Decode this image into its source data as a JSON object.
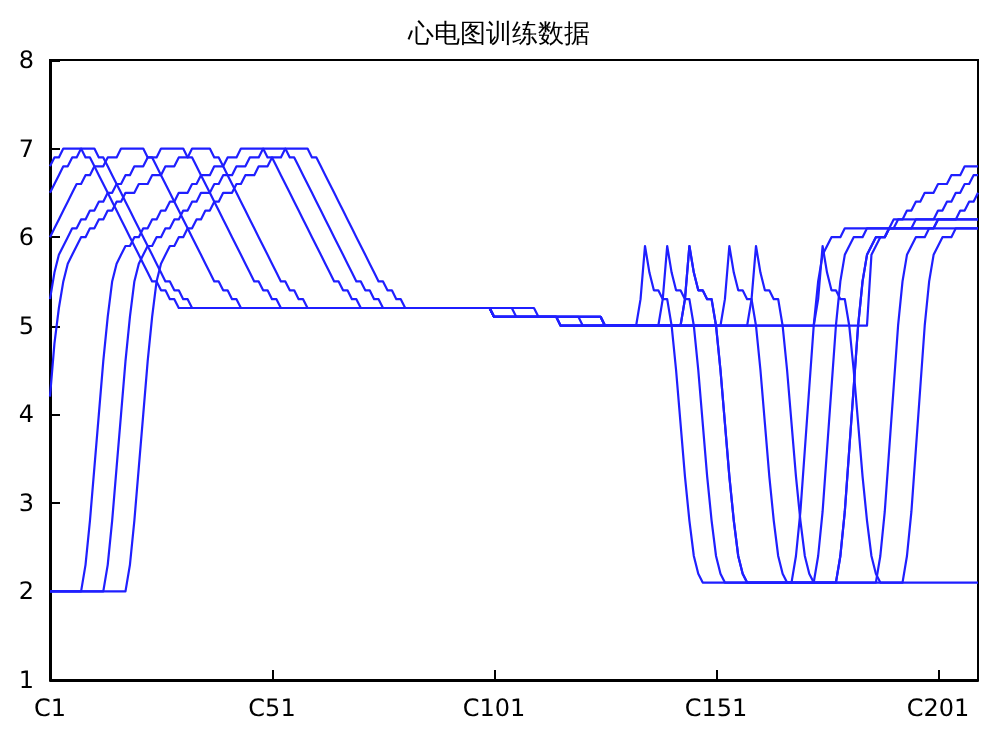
{
  "chart_data": {
    "type": "line",
    "title": "心电图训练数据",
    "ylim": [
      1,
      8
    ],
    "categories": [
      "C1",
      null,
      null,
      null,
      null,
      null,
      null,
      null,
      null,
      null,
      null,
      null,
      null,
      null,
      null,
      null,
      null,
      null,
      null,
      null,
      null,
      null,
      null,
      null,
      null,
      null,
      null,
      null,
      null,
      null,
      null,
      null,
      null,
      null,
      null,
      null,
      null,
      null,
      null,
      null,
      null,
      null,
      null,
      null,
      null,
      null,
      null,
      null,
      null,
      null,
      "C51",
      null,
      null,
      null,
      null,
      null,
      null,
      null,
      null,
      null,
      null,
      null,
      null,
      null,
      null,
      null,
      null,
      null,
      null,
      null,
      null,
      null,
      null,
      null,
      null,
      null,
      null,
      null,
      null,
      null,
      null,
      null,
      null,
      null,
      null,
      null,
      null,
      null,
      null,
      null,
      null,
      null,
      null,
      null,
      null,
      null,
      null,
      null,
      null,
      null,
      "C101",
      null,
      null,
      null,
      null,
      null,
      null,
      null,
      null,
      null,
      null,
      null,
      null,
      null,
      null,
      null,
      null,
      null,
      null,
      null,
      null,
      null,
      null,
      null,
      null,
      null,
      null,
      null,
      null,
      null,
      null,
      null,
      null,
      null,
      null,
      null,
      null,
      null,
      null,
      null,
      null,
      null,
      null,
      null,
      null,
      null,
      null,
      null,
      null,
      null,
      "C151",
      null,
      null,
      null,
      null,
      null,
      null,
      null,
      null,
      null,
      null,
      null,
      null,
      null,
      null,
      null,
      null,
      null,
      null,
      null,
      null,
      null,
      null,
      null,
      null,
      null,
      null,
      null,
      null,
      null,
      null,
      null,
      null,
      null,
      null,
      null,
      null,
      null,
      null,
      null,
      null,
      null,
      null,
      null,
      null,
      null,
      null,
      null,
      null,
      null,
      "C201",
      null,
      null,
      null,
      null,
      null,
      null,
      null,
      null,
      null
    ],
    "yticks": [
      1,
      2,
      3,
      4,
      5,
      6,
      7,
      8
    ],
    "grid": false,
    "marker": "none",
    "line_style": "solid",
    "series": [
      {
        "color": "#1f1fff",
        "values": [
          2.0,
          2.0,
          2.0,
          2.0,
          2.0,
          2.0,
          2.0,
          2.0,
          2.3,
          2.8,
          3.4,
          4.0,
          4.6,
          5.1,
          5.5,
          5.7,
          5.8,
          5.9,
          5.9,
          6.0,
          6.0,
          6.1,
          6.1,
          6.2,
          6.2,
          6.3,
          6.3,
          6.4,
          6.4,
          6.5,
          6.5,
          6.5,
          6.6,
          6.6,
          6.7,
          6.7,
          6.7,
          6.8,
          6.8,
          6.8,
          6.9,
          6.9,
          6.9,
          7.0,
          7.0,
          7.0,
          7.0,
          7.0,
          7.0,
          6.9,
          6.9,
          6.8,
          6.7,
          6.6,
          6.5,
          6.4,
          6.3,
          6.2,
          6.1,
          6.0,
          5.9,
          5.8,
          5.7,
          5.6,
          5.5,
          5.5,
          5.4,
          5.4,
          5.3,
          5.3,
          5.2,
          5.2,
          5.2,
          5.2,
          5.2,
          5.2,
          5.2,
          5.2,
          5.2,
          5.2,
          5.2,
          5.2,
          5.2,
          5.2,
          5.2,
          5.2,
          5.2,
          5.2,
          5.2,
          5.2,
          5.2,
          5.2,
          5.2,
          5.2,
          5.2,
          5.2,
          5.2,
          5.2,
          5.2,
          5.2,
          5.1,
          5.1,
          5.1,
          5.1,
          5.1,
          5.1,
          5.1,
          5.1,
          5.1,
          5.1,
          5.1,
          5.1,
          5.1,
          5.1,
          5.1,
          5.0,
          5.0,
          5.0,
          5.0,
          5.0,
          5.0,
          5.0,
          5.0,
          5.0,
          5.0,
          5.0,
          5.0,
          5.0,
          5.0,
          5.0,
          5.0,
          5.0,
          5.0,
          5.3,
          5.9,
          5.6,
          5.4,
          5.4,
          5.3,
          5.3,
          5.0,
          4.5,
          3.9,
          3.3,
          2.8,
          2.4,
          2.2,
          2.1,
          2.1,
          2.1,
          2.1,
          2.1,
          2.1,
          2.1,
          2.1,
          2.1,
          2.1,
          2.1,
          2.1,
          2.1,
          2.1,
          2.1,
          2.1,
          2.1,
          2.1,
          2.1,
          2.1,
          2.1,
          2.4,
          2.9,
          3.6,
          4.3,
          5.0,
          5.5,
          5.8,
          5.9,
          6.0,
          6.0,
          6.0,
          6.1,
          6.1,
          6.1,
          6.1,
          6.1,
          6.1,
          6.1,
          6.1,
          6.1,
          6.1,
          6.1,
          6.2,
          6.2,
          6.2,
          6.2,
          6.2,
          6.2,
          6.2,
          6.2,
          6.2,
          6.2,
          6.3,
          6.3,
          6.4,
          6.4,
          6.5,
          6.5,
          6.6,
          6.6,
          6.7,
          6.7
        ]
      },
      {
        "color": "#1f1fff",
        "values": [
          2.0,
          2.0,
          2.0,
          2.0,
          2.0,
          2.0,
          2.0,
          2.0,
          2.0,
          2.0,
          2.0,
          2.0,
          2.0,
          2.0,
          2.0,
          2.0,
          2.0,
          2.0,
          2.3,
          2.8,
          3.4,
          4.0,
          4.6,
          5.1,
          5.5,
          5.7,
          5.8,
          5.9,
          5.9,
          6.0,
          6.0,
          6.1,
          6.1,
          6.2,
          6.2,
          6.3,
          6.3,
          6.4,
          6.4,
          6.5,
          6.5,
          6.5,
          6.6,
          6.6,
          6.7,
          6.7,
          6.7,
          6.8,
          6.8,
          6.8,
          6.9,
          6.9,
          6.9,
          7.0,
          7.0,
          7.0,
          7.0,
          7.0,
          7.0,
          6.9,
          6.9,
          6.8,
          6.7,
          6.6,
          6.5,
          6.4,
          6.3,
          6.2,
          6.1,
          6.0,
          5.9,
          5.8,
          5.7,
          5.6,
          5.5,
          5.5,
          5.4,
          5.4,
          5.3,
          5.3,
          5.2,
          5.2,
          5.2,
          5.2,
          5.2,
          5.2,
          5.2,
          5.2,
          5.2,
          5.2,
          5.2,
          5.2,
          5.2,
          5.2,
          5.2,
          5.2,
          5.2,
          5.2,
          5.2,
          5.2,
          5.2,
          5.2,
          5.2,
          5.2,
          5.2,
          5.2,
          5.2,
          5.2,
          5.2,
          5.2,
          5.1,
          5.1,
          5.1,
          5.1,
          5.1,
          5.1,
          5.1,
          5.1,
          5.1,
          5.1,
          5.1,
          5.1,
          5.1,
          5.1,
          5.1,
          5.0,
          5.0,
          5.0,
          5.0,
          5.0,
          5.0,
          5.0,
          5.0,
          5.0,
          5.0,
          5.0,
          5.0,
          5.0,
          5.0,
          5.0,
          5.0,
          5.0,
          5.0,
          5.3,
          5.9,
          5.6,
          5.4,
          5.4,
          5.3,
          5.3,
          5.0,
          4.5,
          3.9,
          3.3,
          2.8,
          2.4,
          2.2,
          2.1,
          2.1,
          2.1,
          2.1,
          2.1,
          2.1,
          2.1,
          2.1,
          2.1,
          2.1,
          2.1,
          2.1,
          2.1,
          2.1,
          2.1,
          2.1,
          2.1,
          2.1,
          2.1,
          2.1,
          2.1,
          2.4,
          2.9,
          3.6,
          4.3,
          5.0,
          5.5,
          5.8,
          5.9,
          6.0,
          6.0,
          6.0,
          6.1,
          6.1,
          6.1,
          6.1,
          6.1,
          6.1,
          6.1,
          6.1,
          6.1,
          6.1,
          6.1,
          6.2,
          6.2,
          6.2,
          6.2,
          6.2,
          6.2,
          6.2,
          6.2,
          6.2,
          6.2
        ]
      },
      {
        "color": "#1f1fff",
        "values": [
          2.0,
          2.0,
          2.0,
          2.0,
          2.0,
          2.0,
          2.0,
          2.0,
          2.0,
          2.0,
          2.0,
          2.0,
          2.0,
          2.3,
          2.8,
          3.4,
          4.0,
          4.6,
          5.1,
          5.5,
          5.7,
          5.8,
          5.9,
          5.9,
          6.0,
          6.0,
          6.1,
          6.1,
          6.2,
          6.2,
          6.3,
          6.3,
          6.4,
          6.4,
          6.5,
          6.5,
          6.5,
          6.6,
          6.6,
          6.7,
          6.7,
          6.7,
          6.8,
          6.8,
          6.8,
          6.9,
          6.9,
          6.9,
          7.0,
          7.0,
          7.0,
          7.0,
          7.0,
          7.0,
          6.9,
          6.9,
          6.8,
          6.7,
          6.6,
          6.5,
          6.4,
          6.3,
          6.2,
          6.1,
          6.0,
          5.9,
          5.8,
          5.7,
          5.6,
          5.5,
          5.5,
          5.4,
          5.4,
          5.3,
          5.3,
          5.2,
          5.2,
          5.2,
          5.2,
          5.2,
          5.2,
          5.2,
          5.2,
          5.2,
          5.2,
          5.2,
          5.2,
          5.2,
          5.2,
          5.2,
          5.2,
          5.2,
          5.2,
          5.2,
          5.2,
          5.2,
          5.2,
          5.2,
          5.2,
          5.2,
          5.2,
          5.2,
          5.2,
          5.2,
          5.2,
          5.1,
          5.1,
          5.1,
          5.1,
          5.1,
          5.1,
          5.1,
          5.1,
          5.1,
          5.1,
          5.1,
          5.1,
          5.1,
          5.1,
          5.1,
          5.0,
          5.0,
          5.0,
          5.0,
          5.0,
          5.0,
          5.0,
          5.0,
          5.0,
          5.0,
          5.0,
          5.0,
          5.0,
          5.0,
          5.0,
          5.0,
          5.0,
          5.0,
          5.3,
          5.9,
          5.6,
          5.4,
          5.4,
          5.3,
          5.3,
          5.0,
          4.5,
          3.9,
          3.3,
          2.8,
          2.4,
          2.2,
          2.1,
          2.1,
          2.1,
          2.1,
          2.1,
          2.1,
          2.1,
          2.1,
          2.1,
          2.1,
          2.1,
          2.1,
          2.1,
          2.1,
          2.1,
          2.1,
          2.1,
          2.1,
          2.1,
          2.1,
          2.1,
          2.4,
          2.9,
          3.6,
          4.3,
          5.0,
          5.5,
          5.8,
          5.9,
          6.0,
          6.0,
          6.0,
          6.1,
          6.1,
          6.1,
          6.1,
          6.1,
          6.1,
          6.1,
          6.1,
          6.1,
          6.1,
          6.1,
          6.2,
          6.2,
          6.2,
          6.2,
          6.2,
          6.2,
          6.2,
          6.2,
          6.2,
          6.2,
          6.3,
          6.3,
          6.4,
          6.4,
          6.5
        ]
      },
      {
        "color": "#1f1fff",
        "values": [
          6.0,
          6.1,
          6.2,
          6.3,
          6.4,
          6.5,
          6.6,
          6.6,
          6.7,
          6.7,
          6.8,
          6.8,
          6.8,
          6.9,
          6.9,
          6.9,
          7.0,
          7.0,
          7.0,
          7.0,
          7.0,
          7.0,
          6.9,
          6.9,
          6.8,
          6.7,
          6.6,
          6.5,
          6.4,
          6.3,
          6.2,
          6.1,
          6.0,
          5.9,
          5.8,
          5.7,
          5.6,
          5.5,
          5.5,
          5.4,
          5.4,
          5.3,
          5.3,
          5.2,
          5.2,
          5.2,
          5.2,
          5.2,
          5.2,
          5.2,
          5.2,
          5.2,
          5.2,
          5.2,
          5.2,
          5.2,
          5.2,
          5.2,
          5.2,
          5.2,
          5.2,
          5.2,
          5.2,
          5.2,
          5.2,
          5.2,
          5.2,
          5.2,
          5.2,
          5.2,
          5.2,
          5.2,
          5.2,
          5.2,
          5.2,
          5.2,
          5.2,
          5.2,
          5.2,
          5.2,
          5.2,
          5.2,
          5.2,
          5.2,
          5.2,
          5.2,
          5.2,
          5.2,
          5.2,
          5.2,
          5.2,
          5.2,
          5.2,
          5.2,
          5.2,
          5.2,
          5.2,
          5.2,
          5.2,
          5.2,
          5.1,
          5.1,
          5.1,
          5.1,
          5.1,
          5.1,
          5.1,
          5.1,
          5.1,
          5.1,
          5.1,
          5.1,
          5.1,
          5.1,
          5.1,
          5.1,
          5.1,
          5.1,
          5.1,
          5.1,
          5.1,
          5.1,
          5.1,
          5.1,
          5.1,
          5.0,
          5.0,
          5.0,
          5.0,
          5.0,
          5.0,
          5.0,
          5.0,
          5.0,
          5.0,
          5.0,
          5.0,
          5.0,
          5.0,
          5.0,
          5.0,
          5.0,
          5.0,
          5.3,
          5.9,
          5.6,
          5.4,
          5.4,
          5.3,
          5.3,
          5.0,
          4.5,
          3.9,
          3.3,
          2.8,
          2.4,
          2.2,
          2.1,
          2.1,
          2.1,
          2.1,
          2.1,
          2.1,
          2.1,
          2.1,
          2.1,
          2.1,
          2.1,
          2.1,
          2.1,
          2.1,
          2.1,
          2.1,
          2.1,
          2.1,
          2.1,
          2.1,
          2.1,
          2.4,
          2.9,
          3.6,
          4.3,
          5.0,
          5.5,
          5.8,
          5.9,
          6.0,
          6.0,
          6.0,
          6.1,
          6.1,
          6.1,
          6.1,
          6.1,
          6.1,
          6.1,
          6.1,
          6.1,
          6.1,
          6.1,
          6.2,
          6.2,
          6.2,
          6.2,
          6.2,
          6.2,
          6.2,
          6.2,
          6.2,
          6.2
        ]
      },
      {
        "color": "#1f1fff",
        "values": [
          6.8,
          6.9,
          6.9,
          7.0,
          7.0,
          7.0,
          7.0,
          7.0,
          6.9,
          6.9,
          6.8,
          6.7,
          6.6,
          6.5,
          6.4,
          6.3,
          6.2,
          6.1,
          6.0,
          5.9,
          5.8,
          5.7,
          5.6,
          5.5,
          5.5,
          5.4,
          5.4,
          5.3,
          5.3,
          5.2,
          5.2,
          5.2,
          5.2,
          5.2,
          5.2,
          5.2,
          5.2,
          5.2,
          5.2,
          5.2,
          5.2,
          5.2,
          5.2,
          5.2,
          5.2,
          5.2,
          5.2,
          5.2,
          5.2,
          5.2,
          5.2,
          5.2,
          5.2,
          5.2,
          5.2,
          5.2,
          5.2,
          5.2,
          5.2,
          5.2,
          5.2,
          5.2,
          5.2,
          5.2,
          5.2,
          5.2,
          5.2,
          5.2,
          5.2,
          5.2,
          5.2,
          5.2,
          5.2,
          5.2,
          5.2,
          5.2,
          5.2,
          5.2,
          5.2,
          5.2,
          5.2,
          5.2,
          5.2,
          5.2,
          5.2,
          5.2,
          5.2,
          5.2,
          5.2,
          5.2,
          5.2,
          5.2,
          5.2,
          5.2,
          5.2,
          5.2,
          5.2,
          5.2,
          5.2,
          5.2,
          5.1,
          5.1,
          5.1,
          5.1,
          5.1,
          5.1,
          5.1,
          5.1,
          5.1,
          5.1,
          5.1,
          5.1,
          5.1,
          5.1,
          5.1,
          5.0,
          5.0,
          5.0,
          5.0,
          5.0,
          5.0,
          5.0,
          5.0,
          5.0,
          5.0,
          5.0,
          5.0,
          5.0,
          5.0,
          5.0,
          5.0,
          5.0,
          5.0,
          5.0,
          5.0,
          5.0,
          5.0,
          5.0,
          5.0,
          5.0,
          5.0,
          5.0,
          5.0,
          5.0,
          5.0,
          5.0,
          5.0,
          5.0,
          5.0,
          5.0,
          5.0,
          5.0,
          5.0,
          5.0,
          5.0,
          5.0,
          5.0,
          5.0,
          5.0,
          5.0,
          5.0,
          5.0,
          5.0,
          5.0,
          5.0,
          5.0,
          5.0,
          5.0,
          5.0,
          5.0,
          5.0,
          5.0,
          5.0,
          5.3,
          5.9,
          5.6,
          5.4,
          5.4,
          5.3,
          5.3,
          5.0,
          4.5,
          3.9,
          3.3,
          2.8,
          2.4,
          2.2,
          2.1,
          2.1,
          2.1,
          2.1,
          2.1,
          2.1,
          2.1,
          2.1,
          2.1,
          2.1,
          2.1,
          2.1,
          2.1,
          2.1,
          2.1,
          2.1,
          2.1,
          2.1,
          2.1,
          2.1,
          2.1,
          2.1,
          2.1
        ]
      },
      {
        "color": "#1f1fff",
        "values": [
          6.5,
          6.6,
          6.7,
          6.8,
          6.8,
          6.9,
          6.9,
          7.0,
          7.0,
          7.0,
          7.0,
          6.9,
          6.9,
          6.8,
          6.7,
          6.6,
          6.5,
          6.4,
          6.3,
          6.2,
          6.1,
          6.0,
          5.9,
          5.8,
          5.7,
          5.6,
          5.5,
          5.5,
          5.4,
          5.4,
          5.3,
          5.3,
          5.2,
          5.2,
          5.2,
          5.2,
          5.2,
          5.2,
          5.2,
          5.2,
          5.2,
          5.2,
          5.2,
          5.2,
          5.2,
          5.2,
          5.2,
          5.2,
          5.2,
          5.2,
          5.2,
          5.2,
          5.2,
          5.2,
          5.2,
          5.2,
          5.2,
          5.2,
          5.2,
          5.2,
          5.2,
          5.2,
          5.2,
          5.2,
          5.2,
          5.2,
          5.2,
          5.2,
          5.2,
          5.2,
          5.2,
          5.2,
          5.2,
          5.2,
          5.2,
          5.2,
          5.2,
          5.2,
          5.2,
          5.2,
          5.2,
          5.2,
          5.2,
          5.2,
          5.2,
          5.2,
          5.2,
          5.2,
          5.2,
          5.2,
          5.2,
          5.2,
          5.2,
          5.2,
          5.2,
          5.2,
          5.2,
          5.2,
          5.2,
          5.2,
          5.1,
          5.1,
          5.1,
          5.1,
          5.1,
          5.1,
          5.1,
          5.1,
          5.1,
          5.1,
          5.1,
          5.1,
          5.1,
          5.1,
          5.1,
          5.1,
          5.1,
          5.1,
          5.1,
          5.1,
          5.1,
          5.1,
          5.1,
          5.1,
          5.1,
          5.0,
          5.0,
          5.0,
          5.0,
          5.0,
          5.0,
          5.0,
          5.0,
          5.0,
          5.0,
          5.0,
          5.0,
          5.0,
          5.0,
          5.0,
          5.0,
          5.0,
          5.0,
          5.0,
          5.0,
          5.0,
          5.0,
          5.0,
          5.0,
          5.0,
          5.0,
          5.0,
          5.3,
          5.9,
          5.6,
          5.4,
          5.4,
          5.3,
          5.3,
          5.0,
          4.5,
          3.9,
          3.3,
          2.8,
          2.4,
          2.2,
          2.1,
          2.1,
          2.1,
          2.1,
          2.1,
          2.1,
          2.1,
          2.1,
          2.1,
          2.1,
          2.1,
          2.1,
          2.1,
          2.1,
          2.1,
          2.1,
          2.1,
          2.1,
          2.1,
          2.1,
          2.1,
          2.4,
          2.9,
          3.6,
          4.3,
          5.0,
          5.5,
          5.8,
          5.9,
          6.0,
          6.0,
          6.0,
          6.1,
          6.1,
          6.1,
          6.1,
          6.1,
          6.1,
          6.1,
          6.1,
          6.1,
          6.1,
          6.1,
          6.1
        ]
      },
      {
        "color": "#1f1fff",
        "values": [
          5.3,
          5.6,
          5.8,
          5.9,
          6.0,
          6.1,
          6.1,
          6.2,
          6.2,
          6.3,
          6.3,
          6.4,
          6.4,
          6.5,
          6.5,
          6.6,
          6.6,
          6.7,
          6.7,
          6.8,
          6.8,
          6.8,
          6.9,
          6.9,
          6.9,
          7.0,
          7.0,
          7.0,
          7.0,
          7.0,
          7.0,
          6.9,
          6.9,
          6.8,
          6.7,
          6.6,
          6.5,
          6.4,
          6.3,
          6.2,
          6.1,
          6.0,
          5.9,
          5.8,
          5.7,
          5.6,
          5.5,
          5.5,
          5.4,
          5.4,
          5.3,
          5.3,
          5.2,
          5.2,
          5.2,
          5.2,
          5.2,
          5.2,
          5.2,
          5.2,
          5.2,
          5.2,
          5.2,
          5.2,
          5.2,
          5.2,
          5.2,
          5.2,
          5.2,
          5.2,
          5.2,
          5.2,
          5.2,
          5.2,
          5.2,
          5.2,
          5.2,
          5.2,
          5.2,
          5.2,
          5.2,
          5.2,
          5.2,
          5.2,
          5.2,
          5.2,
          5.2,
          5.2,
          5.2,
          5.2,
          5.2,
          5.2,
          5.2,
          5.2,
          5.2,
          5.2,
          5.2,
          5.2,
          5.2,
          5.2,
          5.1,
          5.1,
          5.1,
          5.1,
          5.1,
          5.1,
          5.1,
          5.1,
          5.1,
          5.1,
          5.1,
          5.1,
          5.1,
          5.1,
          5.1,
          5.1,
          5.1,
          5.1,
          5.1,
          5.1,
          5.1,
          5.1,
          5.1,
          5.1,
          5.1,
          5.0,
          5.0,
          5.0,
          5.0,
          5.0,
          5.0,
          5.0,
          5.0,
          5.0,
          5.0,
          5.0,
          5.0,
          5.0,
          5.0,
          5.0,
          5.0,
          5.0,
          5.0,
          5.0,
          5.0,
          5.0,
          5.0,
          5.0,
          5.0,
          5.0,
          5.0,
          5.0,
          5.0,
          5.0,
          5.0,
          5.0,
          5.0,
          5.0,
          5.3,
          5.9,
          5.6,
          5.4,
          5.4,
          5.3,
          5.3,
          5.0,
          4.5,
          3.9,
          3.3,
          2.8,
          2.4,
          2.2,
          2.1,
          2.1,
          2.1,
          2.1,
          2.1,
          2.1,
          2.1,
          2.1,
          2.1,
          2.1,
          2.1,
          2.1,
          2.1,
          2.1,
          2.1,
          2.1,
          2.1,
          2.1,
          2.1,
          2.1,
          2.1,
          2.4,
          2.9,
          3.6,
          4.3,
          5.0,
          5.5,
          5.8,
          5.9,
          6.0,
          6.0,
          6.0,
          6.1,
          6.1,
          6.1,
          6.1,
          6.1,
          6.1
        ]
      },
      {
        "color": "#1f1fff",
        "values": [
          4.2,
          4.8,
          5.2,
          5.5,
          5.7,
          5.8,
          5.9,
          6.0,
          6.0,
          6.1,
          6.1,
          6.2,
          6.2,
          6.3,
          6.3,
          6.4,
          6.4,
          6.5,
          6.5,
          6.5,
          6.6,
          6.6,
          6.6,
          6.7,
          6.7,
          6.7,
          6.8,
          6.8,
          6.8,
          6.9,
          6.9,
          6.9,
          7.0,
          7.0,
          7.0,
          7.0,
          7.0,
          6.9,
          6.9,
          6.8,
          6.7,
          6.6,
          6.5,
          6.4,
          6.3,
          6.2,
          6.1,
          6.0,
          5.9,
          5.8,
          5.7,
          5.6,
          5.5,
          5.5,
          5.4,
          5.4,
          5.3,
          5.3,
          5.2,
          5.2,
          5.2,
          5.2,
          5.2,
          5.2,
          5.2,
          5.2,
          5.2,
          5.2,
          5.2,
          5.2,
          5.2,
          5.2,
          5.2,
          5.2,
          5.2,
          5.2,
          5.2,
          5.2,
          5.2,
          5.2,
          5.2,
          5.2,
          5.2,
          5.2,
          5.2,
          5.2,
          5.2,
          5.2,
          5.2,
          5.2,
          5.2,
          5.2,
          5.2,
          5.2,
          5.2,
          5.2,
          5.2,
          5.2,
          5.2,
          5.2,
          5.1,
          5.1,
          5.1,
          5.1,
          5.1,
          5.1,
          5.1,
          5.1,
          5.1,
          5.1,
          5.1,
          5.1,
          5.1,
          5.1,
          5.1,
          5.0,
          5.0,
          5.0,
          5.0,
          5.0,
          5.0,
          5.0,
          5.0,
          5.0,
          5.0,
          5.0,
          5.0,
          5.0,
          5.0,
          5.0,
          5.0,
          5.0,
          5.0,
          5.0,
          5.0,
          5.0,
          5.0,
          5.0,
          5.0,
          5.0,
          5.0,
          5.0,
          5.0,
          5.0,
          5.0,
          5.0,
          5.0,
          5.0,
          5.0,
          5.0,
          5.0,
          5.0,
          5.0,
          5.0,
          5.0,
          5.0,
          5.0,
          5.0,
          5.0,
          5.0,
          5.0,
          5.0,
          5.0,
          5.0,
          5.0,
          5.0,
          5.0,
          5.0,
          5.0,
          5.0,
          5.0,
          5.0,
          5.0,
          5.0,
          5.0,
          5.0,
          5.0,
          5.0,
          5.0,
          5.0,
          5.0,
          5.0,
          5.0,
          5.0,
          5.0,
          5.8,
          5.9,
          6.0,
          6.0,
          6.1,
          6.1,
          6.2,
          6.2,
          6.3,
          6.3,
          6.4,
          6.4,
          6.5,
          6.5,
          6.5,
          6.6,
          6.6,
          6.6,
          6.7,
          6.7,
          6.7,
          6.8,
          6.8,
          6.8,
          6.8
        ]
      }
    ]
  }
}
